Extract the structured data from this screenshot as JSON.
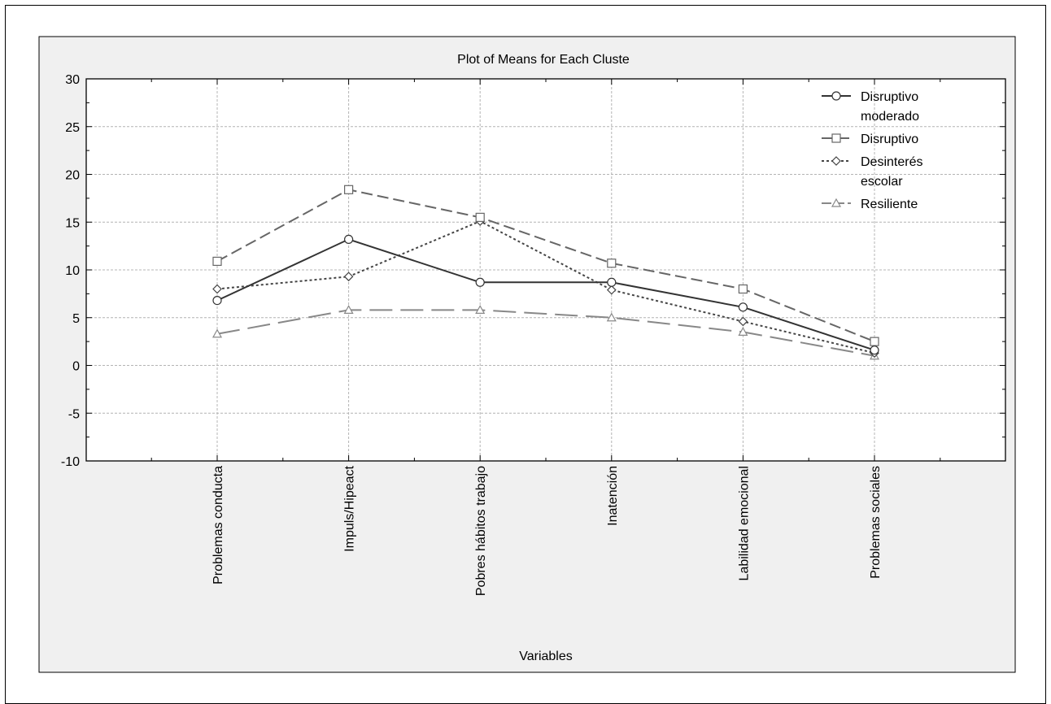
{
  "chart_data": {
    "type": "line",
    "title": "Plot of Means for Each Cluste",
    "xlabel": "Variables",
    "ylabel": "",
    "categories": [
      "Problemas conducta",
      "Impuls/Hipeact",
      "Pobres hábitos trabajo",
      "Inatención",
      "Labilidad emocional",
      "Problemas sociales"
    ],
    "ylim": [
      -10,
      30
    ],
    "yticks": [
      -10,
      -5,
      0,
      5,
      10,
      15,
      20,
      25,
      30
    ],
    "grid": true,
    "legend_position": "top-right",
    "series": [
      {
        "name": "Disruptivo moderado",
        "legend_lines": [
          "Disruptivo",
          "moderado"
        ],
        "marker": "circle",
        "dash": "solid",
        "color": "#333333",
        "values": [
          6.8,
          13.2,
          8.7,
          8.7,
          6.1,
          1.6
        ]
      },
      {
        "name": "Disruptivo",
        "legend_lines": [
          "Disruptivo"
        ],
        "marker": "square",
        "dash": "long-dash",
        "color": "#666666",
        "values": [
          10.9,
          18.4,
          15.5,
          10.7,
          8.0,
          2.5
        ]
      },
      {
        "name": "Desinterés escolar",
        "legend_lines": [
          "Desinterés",
          "escolar"
        ],
        "marker": "diamond",
        "dash": "dotted",
        "color": "#444444",
        "values": [
          8.0,
          9.3,
          15.1,
          7.9,
          4.6,
          1.3
        ]
      },
      {
        "name": "Resiliente",
        "legend_lines": [
          "Resiliente"
        ],
        "marker": "triangle",
        "dash": "long-dash-gap",
        "color": "#888888",
        "values": [
          3.3,
          5.8,
          5.8,
          5.0,
          3.5,
          1.0
        ]
      }
    ]
  }
}
